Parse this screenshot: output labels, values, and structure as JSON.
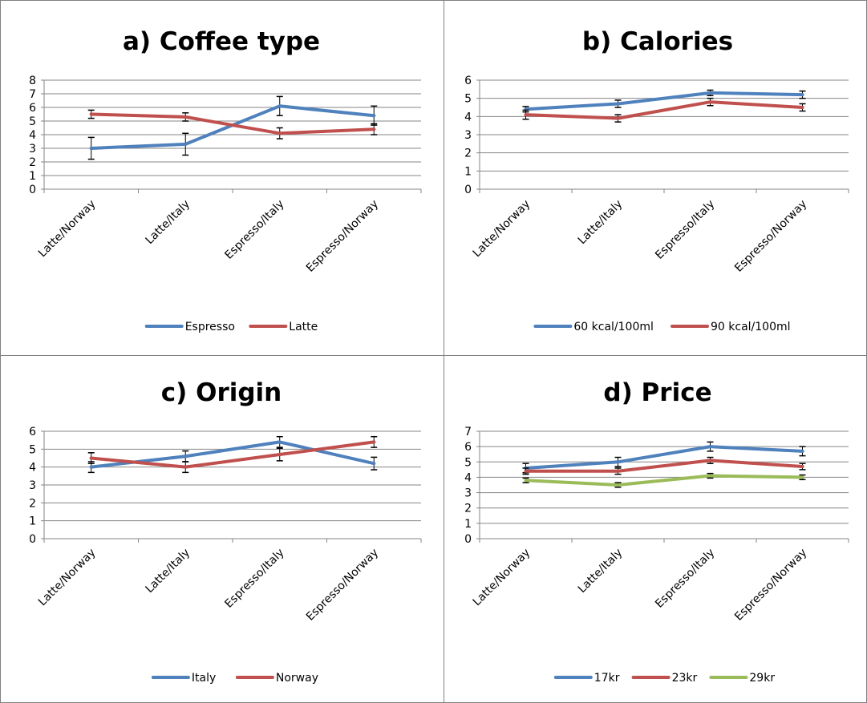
{
  "chart_data": [
    {
      "type": "line",
      "title": "a) Coffee type",
      "categories": [
        "Latte/Norway",
        "Latte/Italy",
        "Espresso/Italy",
        "Espresso/Norway"
      ],
      "ylim": [
        0,
        8
      ],
      "yticks": [
        "0",
        "1",
        "2",
        "3",
        "4",
        "5",
        "6",
        "7",
        "8"
      ],
      "grid": true,
      "legend_position": "bottom",
      "series": [
        {
          "name": "Espresso",
          "color": "#4F81BD",
          "values": [
            3.0,
            3.3,
            6.1,
            5.4
          ],
          "errors": [
            0.8,
            0.8,
            0.7,
            0.7
          ]
        },
        {
          "name": "Latte",
          "color": "#C0504D",
          "values": [
            5.5,
            5.3,
            4.1,
            4.4
          ],
          "errors": [
            0.3,
            0.3,
            0.4,
            0.4
          ]
        }
      ]
    },
    {
      "type": "line",
      "title": "b) Calories",
      "categories": [
        "Latte/Norway",
        "Latte/Italy",
        "Espresso/Italy",
        "Espresso/Norway"
      ],
      "ylim": [
        0,
        6
      ],
      "yticks": [
        "0",
        "1",
        "2",
        "3",
        "4",
        "5",
        "6"
      ],
      "grid": true,
      "legend_position": "bottom",
      "series": [
        {
          "name": "60 kcal/100ml",
          "color": "#4F81BD",
          "values": [
            4.4,
            4.7,
            5.3,
            5.2
          ],
          "errors": [
            0.15,
            0.2,
            0.15,
            0.2
          ]
        },
        {
          "name": "90 kcal/100ml",
          "color": "#C0504D",
          "values": [
            4.1,
            3.9,
            4.8,
            4.5
          ],
          "errors": [
            0.25,
            0.2,
            0.2,
            0.2
          ]
        }
      ]
    },
    {
      "type": "line",
      "title": "c) Origin",
      "categories": [
        "Latte/Norway",
        "Latte/Italy",
        "Espresso/Italy",
        "Espresso/Norway"
      ],
      "ylim": [
        0,
        6
      ],
      "yticks": [
        "0",
        "1",
        "2",
        "3",
        "4",
        "5",
        "6"
      ],
      "grid": true,
      "legend_position": "bottom",
      "series": [
        {
          "name": "Italy",
          "color": "#4F81BD",
          "values": [
            4.0,
            4.6,
            5.4,
            4.2
          ],
          "errors": [
            0.3,
            0.3,
            0.3,
            0.35
          ]
        },
        {
          "name": "Norway",
          "color": "#C0504D",
          "values": [
            4.5,
            4.0,
            4.7,
            5.4
          ],
          "errors": [
            0.3,
            0.3,
            0.35,
            0.3
          ]
        }
      ]
    },
    {
      "type": "line",
      "title": "d) Price",
      "categories": [
        "Latte/Norway",
        "Latte/Italy",
        "Espresso/Italy",
        "Espresso/Norway"
      ],
      "ylim": [
        0,
        7
      ],
      "yticks": [
        "0",
        "1",
        "2",
        "3",
        "4",
        "5",
        "6",
        "7"
      ],
      "grid": true,
      "legend_position": "bottom",
      "series": [
        {
          "name": "17kr",
          "color": "#4F81BD",
          "values": [
            4.6,
            5.0,
            6.0,
            5.7
          ],
          "errors": [
            0.3,
            0.3,
            0.3,
            0.3
          ]
        },
        {
          "name": "23kr",
          "color": "#C0504D",
          "values": [
            4.4,
            4.4,
            5.1,
            4.7
          ],
          "errors": [
            0.2,
            0.2,
            0.2,
            0.2
          ]
        },
        {
          "name": "29kr",
          "color": "#9BBB59",
          "values": [
            3.8,
            3.5,
            4.1,
            4.0
          ],
          "errors": [
            0.15,
            0.15,
            0.15,
            0.15
          ]
        }
      ]
    }
  ]
}
